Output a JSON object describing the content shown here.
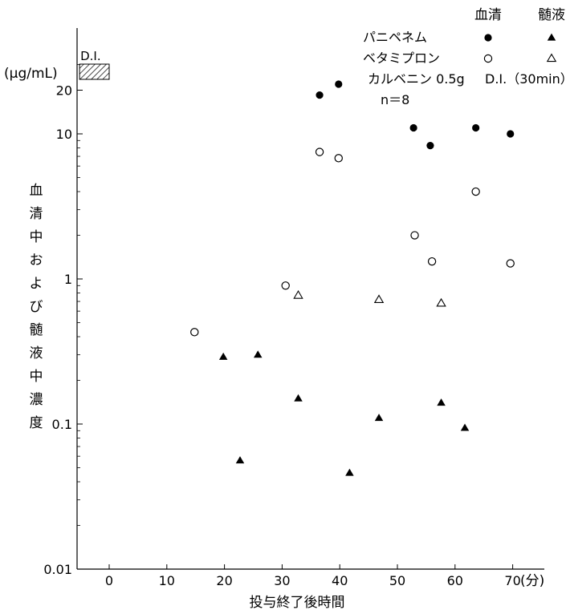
{
  "chart_data": {
    "type": "scatter",
    "xlabel": "投与終了後時間",
    "x_unit": "(分)",
    "ylabel": "血清中および髄液中濃度",
    "y_unit": "(μg/mL)",
    "y_scale": "log",
    "xlim": [
      -5,
      75
    ],
    "ylim": [
      0.01,
      35
    ],
    "x_ticks": [
      "0",
      "10",
      "20",
      "30",
      "40",
      "50",
      "60",
      "70"
    ],
    "y_ticks": [
      "0.01",
      "0.1",
      "1",
      "10",
      "20"
    ],
    "grid": false,
    "legend": {
      "position": "top-right",
      "col_headers": [
        "血清",
        "髄液"
      ],
      "rows": [
        "パニペネム",
        "ベタミプロン"
      ],
      "dosing": "カルベニン 0.5g",
      "dosing_detail": "D.I.（30min）",
      "n": "n＝8"
    },
    "infusion_bar": {
      "label": "D.I.",
      "x_range": [
        -5,
        0
      ]
    },
    "series": [
      {
        "name": "パニペネム 血清",
        "marker": "filled-circle",
        "x": [
          36.5,
          39.8,
          52.8,
          55.7,
          63.6,
          69.6
        ],
        "y": [
          18.5,
          22.0,
          11.0,
          8.3,
          11.0,
          10.0
        ]
      },
      {
        "name": "ベタミプロン 血清",
        "marker": "open-circle",
        "x": [
          14.8,
          30.6,
          36.5,
          39.8,
          53.0,
          56.0,
          63.6,
          69.6
        ],
        "y": [
          0.43,
          0.9,
          7.5,
          6.8,
          2.0,
          1.32,
          4.0,
          1.28
        ]
      },
      {
        "name": "パニペネム 髄液",
        "marker": "filled-triangle",
        "x": [
          19.8,
          22.7,
          25.8,
          32.8,
          41.7,
          46.8,
          57.6,
          61.7
        ],
        "y": [
          0.29,
          0.056,
          0.3,
          0.15,
          0.046,
          0.11,
          0.14,
          0.094
        ]
      },
      {
        "name": "ベタミプロン 髄液",
        "marker": "open-triangle",
        "x": [
          32.8,
          46.8,
          57.6
        ],
        "y": [
          0.77,
          0.72,
          0.68
        ]
      }
    ]
  }
}
